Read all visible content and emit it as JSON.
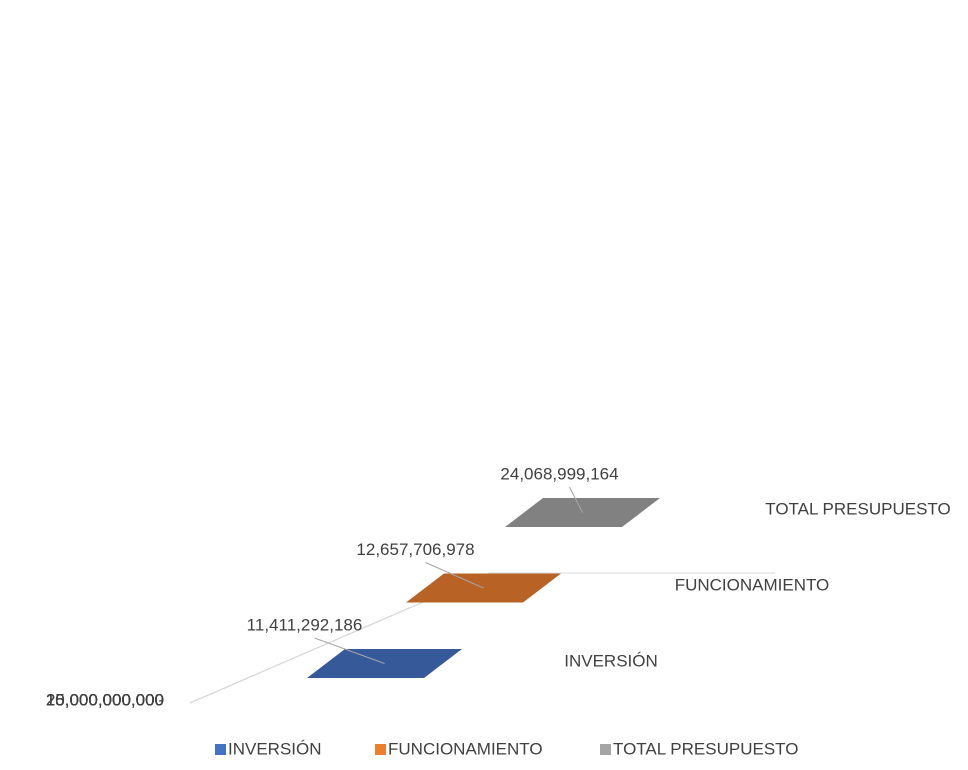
{
  "chart_data": {
    "type": "bar3d",
    "categories": [
      "INVERSIÓN",
      "FUNCIONAMIENTO",
      "TOTAL PRESUPUESTO"
    ],
    "series": [
      {
        "name": "INVERSIÓN",
        "color": "#4472c4"
      },
      {
        "name": "FUNCIONAMIENTO",
        "color": "#ed7d31"
      },
      {
        "name": "TOTAL PRESUPUESTO",
        "color": "#a5a5a5"
      }
    ],
    "values": [
      11411292186,
      12657706978,
      24068999164
    ],
    "value_labels": [
      "11,411,292,186",
      "12,657,706,978",
      "24,068,999,164"
    ],
    "ylim": [
      0,
      25000000000
    ],
    "yticks": [
      {
        "value": 0,
        "label": "-"
      },
      {
        "value": 5000000000,
        "label": "5,000,000,000"
      },
      {
        "value": 10000000000,
        "label": "10,000,000,000"
      },
      {
        "value": 15000000000,
        "label": "15,000,000,000"
      },
      {
        "value": 20000000000,
        "label": "20,000,000,000"
      },
      {
        "value": 25000000000,
        "label": "25,000,000,000"
      }
    ],
    "grid": true,
    "legend": "bottom"
  }
}
